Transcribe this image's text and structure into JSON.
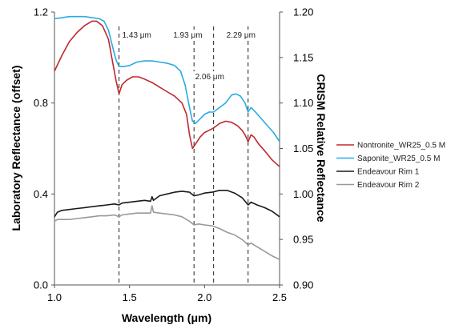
{
  "chart_data": {
    "type": "line",
    "xlabel": "Wavelength (μm)",
    "ylabel_left": "Laboratory Reflectance (offset)",
    "ylabel_right": "CRISM Relative Reflectance",
    "xlim": [
      1.0,
      2.5
    ],
    "ylim_left": [
      0.0,
      1.2
    ],
    "ylim_right": [
      0.9,
      1.2
    ],
    "x_ticks": [
      1.0,
      1.5,
      2.0,
      2.5
    ],
    "x_tick_labels": [
      "1.0",
      "1.5",
      "2.0",
      "2.5"
    ],
    "y_left_ticks": [
      0.0,
      0.4,
      0.8,
      1.2
    ],
    "y_left_tick_labels": [
      "0.0",
      "0.4",
      "0.8",
      "1.2"
    ],
    "y_right_ticks": [
      0.9,
      0.95,
      1.0,
      1.05,
      1.1,
      1.15,
      1.2
    ],
    "y_right_tick_labels": [
      "0.90",
      "0.95",
      "1.00",
      "1.05",
      "1.10",
      "1.15",
      "1.20"
    ],
    "grid": false,
    "legend_position": "right",
    "annotations": [
      {
        "x": 1.43,
        "label": "1.43 μm"
      },
      {
        "x": 1.93,
        "label": "1.93 μm"
      },
      {
        "x": 2.06,
        "label": "2.06 μm"
      },
      {
        "x": 2.29,
        "label": "2.29 μm"
      }
    ],
    "series": [
      {
        "name": "Nontronite_WR25_0.5 M",
        "axis": "left",
        "color": "#c0282d",
        "x": [
          1.0,
          1.05,
          1.1,
          1.15,
          1.2,
          1.25,
          1.28,
          1.32,
          1.36,
          1.39,
          1.41,
          1.43,
          1.45,
          1.48,
          1.52,
          1.56,
          1.6,
          1.65,
          1.7,
          1.75,
          1.8,
          1.85,
          1.88,
          1.9,
          1.92,
          1.94,
          1.97,
          2.0,
          2.03,
          2.06,
          2.1,
          2.14,
          2.18,
          2.22,
          2.25,
          2.27,
          2.29,
          2.31,
          2.33,
          2.36,
          2.4,
          2.45,
          2.5
        ],
        "y": [
          0.94,
          1.01,
          1.07,
          1.11,
          1.14,
          1.16,
          1.16,
          1.14,
          1.08,
          0.97,
          0.9,
          0.84,
          0.88,
          0.9,
          0.915,
          0.915,
          0.905,
          0.89,
          0.87,
          0.85,
          0.83,
          0.8,
          0.75,
          0.66,
          0.6,
          0.62,
          0.65,
          0.67,
          0.68,
          0.69,
          0.71,
          0.72,
          0.715,
          0.7,
          0.68,
          0.66,
          0.63,
          0.66,
          0.65,
          0.62,
          0.59,
          0.55,
          0.52
        ]
      },
      {
        "name": "Saponite_WR25_0.5 M",
        "axis": "left",
        "color": "#29abe2",
        "x": [
          1.0,
          1.05,
          1.1,
          1.15,
          1.2,
          1.25,
          1.3,
          1.33,
          1.36,
          1.39,
          1.41,
          1.43,
          1.46,
          1.5,
          1.55,
          1.6,
          1.65,
          1.7,
          1.75,
          1.8,
          1.84,
          1.87,
          1.9,
          1.92,
          1.94,
          1.97,
          2.0,
          2.03,
          2.06,
          2.1,
          2.14,
          2.18,
          2.21,
          2.24,
          2.27,
          2.29,
          2.31,
          2.34,
          2.38,
          2.42,
          2.46,
          2.5
        ],
        "y": [
          1.17,
          1.175,
          1.18,
          1.18,
          1.18,
          1.175,
          1.17,
          1.16,
          1.12,
          1.04,
          0.99,
          0.96,
          0.96,
          0.965,
          0.98,
          0.985,
          0.985,
          0.98,
          0.975,
          0.965,
          0.94,
          0.88,
          0.78,
          0.72,
          0.71,
          0.73,
          0.75,
          0.76,
          0.76,
          0.78,
          0.8,
          0.835,
          0.84,
          0.83,
          0.8,
          0.76,
          0.78,
          0.76,
          0.73,
          0.7,
          0.67,
          0.63
        ]
      },
      {
        "name": "Endeavour Rim 1",
        "axis": "right",
        "color": "#1a1a1a",
        "x": [
          1.0,
          1.02,
          1.05,
          1.1,
          1.15,
          1.2,
          1.25,
          1.3,
          1.35,
          1.4,
          1.43,
          1.45,
          1.5,
          1.55,
          1.6,
          1.64,
          1.65,
          1.66,
          1.7,
          1.75,
          1.8,
          1.85,
          1.9,
          1.93,
          1.96,
          2.0,
          2.05,
          2.1,
          2.15,
          2.2,
          2.25,
          2.29,
          2.31,
          2.35,
          2.4,
          2.45,
          2.5
        ],
        "y": [
          0.975,
          0.98,
          0.982,
          0.983,
          0.984,
          0.985,
          0.986,
          0.987,
          0.988,
          0.989,
          0.988,
          0.99,
          0.991,
          0.992,
          0.993,
          0.992,
          0.997,
          0.993,
          0.998,
          1.0,
          1.002,
          1.003,
          1.002,
          0.998,
          0.999,
          1.001,
          1.002,
          1.004,
          1.004,
          1.001,
          0.996,
          0.988,
          0.991,
          0.988,
          0.985,
          0.981,
          0.975
        ]
      },
      {
        "name": "Endeavour Rim 2",
        "axis": "right",
        "color": "#999999",
        "x": [
          1.0,
          1.02,
          1.05,
          1.1,
          1.15,
          1.2,
          1.25,
          1.3,
          1.35,
          1.4,
          1.43,
          1.45,
          1.5,
          1.55,
          1.6,
          1.64,
          1.65,
          1.66,
          1.7,
          1.75,
          1.8,
          1.85,
          1.9,
          1.93,
          1.96,
          2.0,
          2.05,
          2.1,
          2.15,
          2.2,
          2.25,
          2.29,
          2.31,
          2.35,
          2.4,
          2.45,
          2.5
        ],
        "y": [
          0.97,
          0.972,
          0.972,
          0.972,
          0.973,
          0.974,
          0.975,
          0.976,
          0.976,
          0.977,
          0.975,
          0.977,
          0.978,
          0.979,
          0.979,
          0.979,
          0.987,
          0.98,
          0.979,
          0.978,
          0.977,
          0.975,
          0.97,
          0.966,
          0.967,
          0.966,
          0.965,
          0.962,
          0.958,
          0.955,
          0.95,
          0.944,
          0.946,
          0.942,
          0.937,
          0.932,
          0.928
        ]
      }
    ]
  }
}
